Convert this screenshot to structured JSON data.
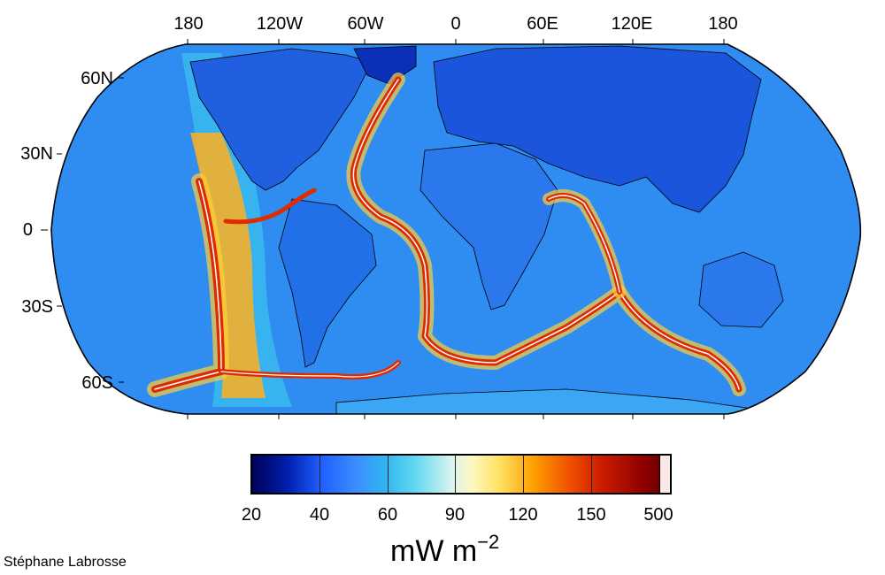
{
  "map": {
    "projection": "Robinson",
    "longitude_labels": [
      "180",
      "120W",
      "60W",
      "0",
      "60E",
      "120E",
      "180"
    ],
    "latitude_labels": [
      "60N",
      "30N",
      "0",
      "30S",
      "60S"
    ],
    "ocean_color": "#2f8cf0",
    "continent_color": "#1446d8",
    "ridge_color": "#e23000",
    "ridge_core_color": "#ffffff"
  },
  "colorbar": {
    "tick_labels": [
      "20",
      "40",
      "60",
      "90",
      "120",
      "150",
      "500"
    ],
    "unit_base": "mW m",
    "unit_exponent": "−2",
    "colors": [
      "#00005a",
      "#2060ff",
      "#2fb8f0",
      "#fff8c0",
      "#ffa000",
      "#d02000",
      "#700000",
      "#fde8e8"
    ]
  },
  "credit": "Stéphane Labrosse"
}
